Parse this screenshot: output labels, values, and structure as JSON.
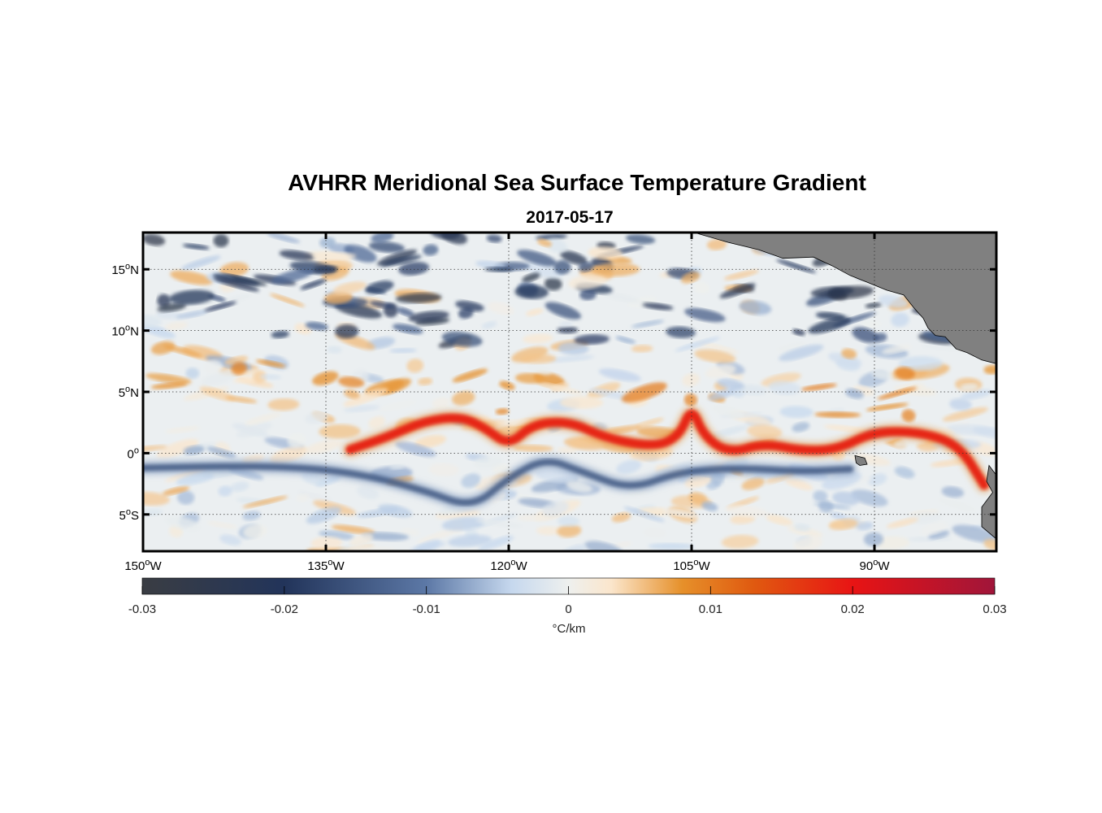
{
  "chart_data": {
    "type": "heatmap",
    "title": "AVHRR Meridional Sea Surface Temperature Gradient",
    "subtitle": "2017-05-17",
    "x_range_deg_lon": [
      -150,
      -80
    ],
    "y_range_deg_lat": [
      -8,
      18
    ],
    "x_ticks": [
      {
        "value": -150,
        "deg": "150",
        "hemi": "W"
      },
      {
        "value": -135,
        "deg": "135",
        "hemi": "W"
      },
      {
        "value": -120,
        "deg": "120",
        "hemi": "W"
      },
      {
        "value": -105,
        "deg": "105",
        "hemi": "W"
      },
      {
        "value": -90,
        "deg": "90",
        "hemi": "W"
      }
    ],
    "y_ticks": [
      {
        "value": 15,
        "deg": "15",
        "hemi": "N"
      },
      {
        "value": 10,
        "deg": "10",
        "hemi": "N"
      },
      {
        "value": 5,
        "deg": "5",
        "hemi": "N"
      },
      {
        "value": 0,
        "deg": "0",
        "hemi": ""
      },
      {
        "value": -5,
        "deg": "5",
        "hemi": "S"
      }
    ],
    "grid": true,
    "colorbar": {
      "min": -0.03,
      "max": 0.03,
      "ticks": [
        {
          "value": -0.03,
          "label": "-0.03"
        },
        {
          "value": -0.02,
          "label": "-0.02"
        },
        {
          "value": -0.01,
          "label": "-0.01"
        },
        {
          "value": 0,
          "label": "0"
        },
        {
          "value": 0.01,
          "label": "0.01"
        },
        {
          "value": 0.02,
          "label": "0.02"
        },
        {
          "value": 0.03,
          "label": "0.03"
        }
      ],
      "label": "°C/km",
      "placement": "bottom",
      "colormap_stops": [
        {
          "value": -0.03,
          "color": "#3a3d43"
        },
        {
          "value": -0.02,
          "color": "#22345a"
        },
        {
          "value": -0.01,
          "color": "#5c78a6"
        },
        {
          "value": -0.004,
          "color": "#c6d8ee"
        },
        {
          "value": 0,
          "color": "#eef0ee"
        },
        {
          "value": 0.003,
          "color": "#fbe6cc"
        },
        {
          "value": 0.008,
          "color": "#e6902a"
        },
        {
          "value": 0.013,
          "color": "#e05a10"
        },
        {
          "value": 0.02,
          "color": "#e81414"
        },
        {
          "value": 0.03,
          "color": "#a0153a"
        }
      ]
    },
    "features": [
      {
        "name": "equatorial warm front",
        "sign": "positive",
        "lon_lat": [
          [
            -133,
            0.3
          ],
          [
            -130,
            1.3
          ],
          [
            -127,
            2.6
          ],
          [
            -124,
            3.0
          ],
          [
            -122,
            2.1
          ],
          [
            -120,
            0.6
          ],
          [
            -118,
            2.4
          ],
          [
            -115,
            2.6
          ],
          [
            -112,
            1.2
          ],
          [
            -108,
            0.5
          ],
          [
            -106,
            1.4
          ],
          [
            -105,
            3.8
          ],
          [
            -104,
            1.4
          ],
          [
            -102,
            0.0
          ],
          [
            -99,
            0.8
          ],
          [
            -96,
            0.2
          ],
          [
            -93,
            0.3
          ],
          [
            -90,
            1.8
          ],
          [
            -86,
            1.7
          ],
          [
            -83,
            0.6
          ],
          [
            -81,
            -2.6
          ]
        ]
      },
      {
        "name": "southern cold band",
        "sign": "negative",
        "lon_lat": [
          [
            -150,
            -1.2
          ],
          [
            -140,
            -1.0
          ],
          [
            -133,
            -1.5
          ],
          [
            -127,
            -3.0
          ],
          [
            -123,
            -4.5
          ],
          [
            -120,
            -2.0
          ],
          [
            -117,
            -0.4
          ],
          [
            -114,
            -1.5
          ],
          [
            -110,
            -3.0
          ],
          [
            -106,
            -1.5
          ],
          [
            -101,
            -1.2
          ],
          [
            -96,
            -1.5
          ],
          [
            -92,
            -1.3
          ]
        ]
      },
      {
        "name": "northern cold eddies",
        "sign": "negative",
        "lat_band": [
          10,
          18
        ]
      }
    ],
    "land_color": "#808080"
  }
}
